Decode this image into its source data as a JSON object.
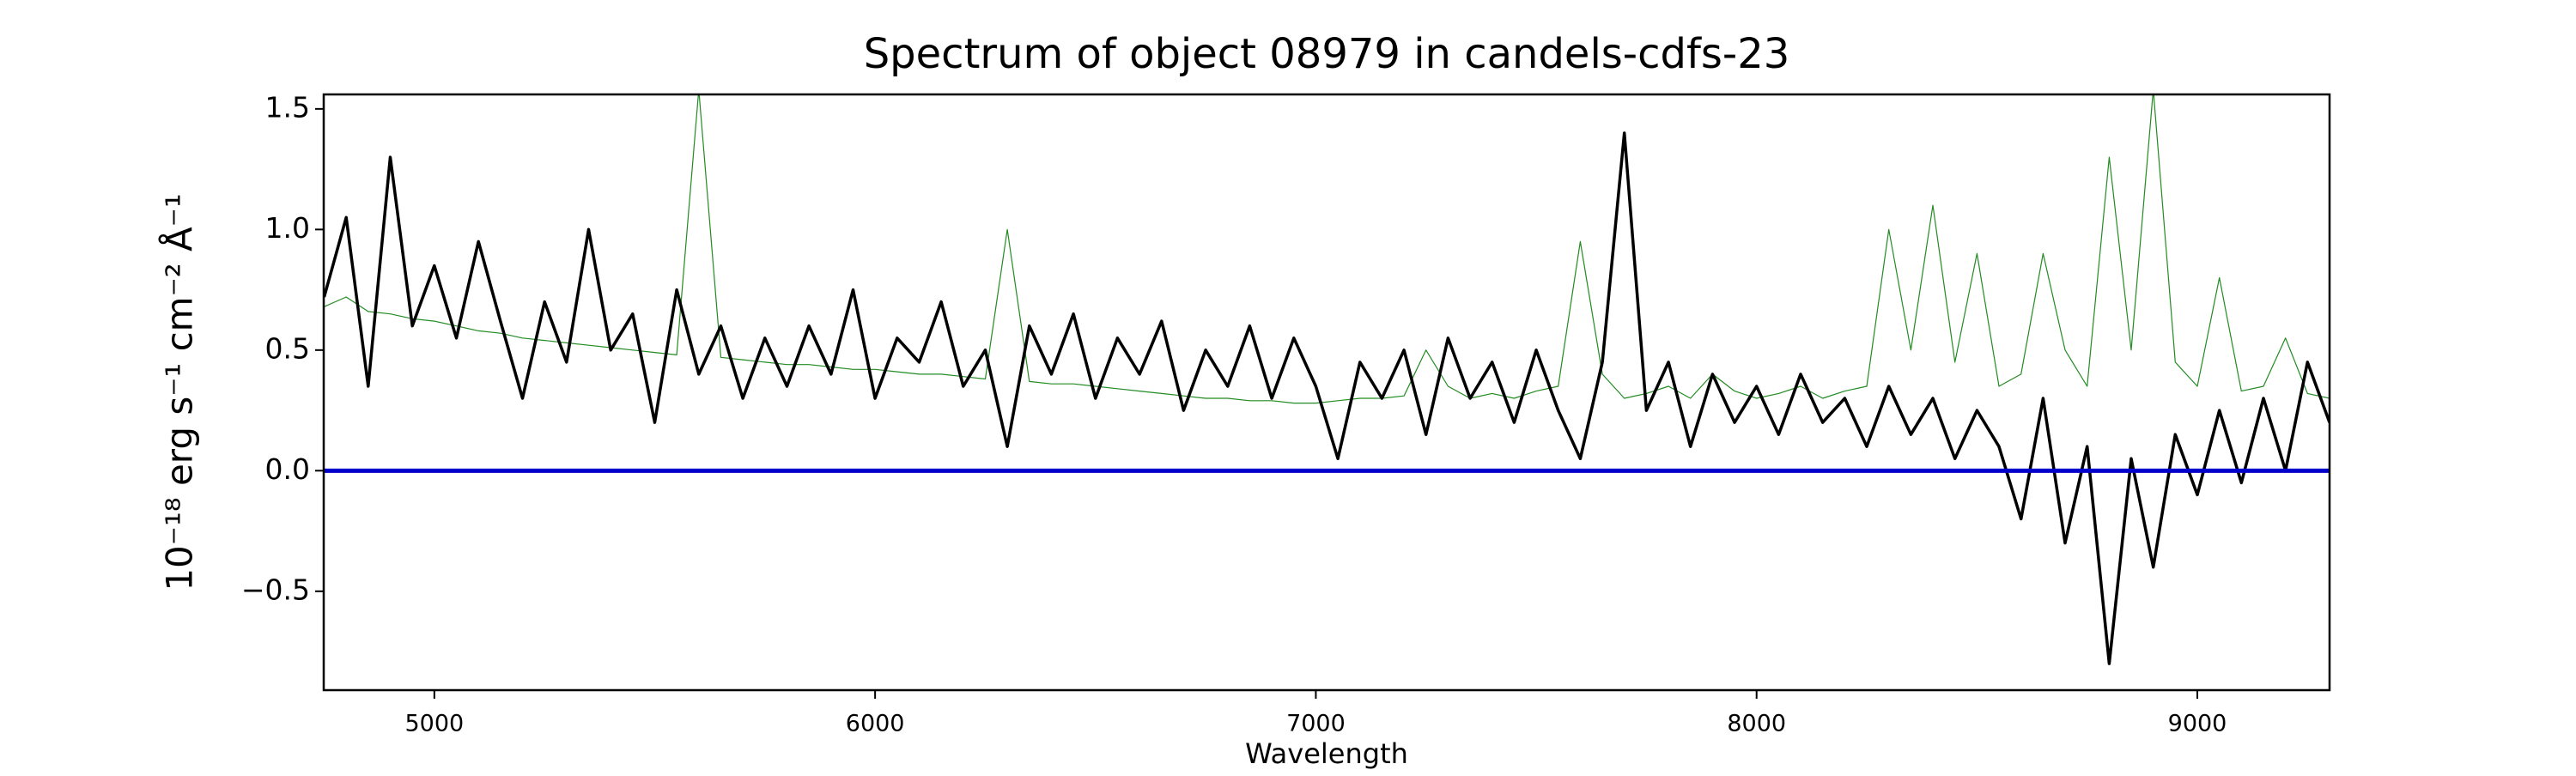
{
  "chart_data": {
    "type": "line",
    "title": "Spectrum of object 08979 in candels-cdfs-23",
    "xlabel": "Wavelength",
    "ylabel": "10⁻¹⁸ erg s⁻¹ cm⁻² Å⁻¹",
    "x": [
      4750,
      4800,
      4850,
      4900,
      4950,
      5000,
      5050,
      5100,
      5150,
      5200,
      5250,
      5300,
      5350,
      5400,
      5450,
      5500,
      5550,
      5600,
      5650,
      5700,
      5750,
      5800,
      5850,
      5900,
      5950,
      6000,
      6050,
      6100,
      6150,
      6200,
      6250,
      6300,
      6350,
      6400,
      6450,
      6500,
      6550,
      6600,
      6650,
      6700,
      6750,
      6800,
      6850,
      6900,
      6950,
      7000,
      7050,
      7100,
      7150,
      7200,
      7250,
      7300,
      7350,
      7400,
      7450,
      7500,
      7550,
      7600,
      7650,
      7700,
      7750,
      7800,
      7850,
      7900,
      7950,
      8000,
      8050,
      8100,
      8150,
      8200,
      8250,
      8300,
      8350,
      8400,
      8450,
      8500,
      8550,
      8600,
      8650,
      8700,
      8750,
      8800,
      8850,
      8900,
      8950,
      9000,
      9050,
      9100,
      9150,
      9200,
      9250,
      9300
    ],
    "series": [
      {
        "color": "#228b22",
        "width": 1.2,
        "values": [
          0.68,
          0.72,
          0.66,
          0.65,
          0.63,
          0.62,
          0.6,
          0.58,
          0.57,
          0.55,
          0.54,
          0.53,
          0.52,
          0.51,
          0.5,
          0.49,
          0.48,
          1.58,
          0.47,
          0.46,
          0.45,
          0.44,
          0.44,
          0.43,
          0.42,
          0.42,
          0.41,
          0.4,
          0.4,
          0.39,
          0.38,
          1.0,
          0.37,
          0.36,
          0.36,
          0.35,
          0.34,
          0.33,
          0.32,
          0.31,
          0.3,
          0.3,
          0.29,
          0.29,
          0.28,
          0.28,
          0.29,
          0.3,
          0.3,
          0.31,
          0.5,
          0.35,
          0.3,
          0.32,
          0.3,
          0.33,
          0.35,
          0.95,
          0.4,
          0.3,
          0.32,
          0.35,
          0.3,
          0.4,
          0.33,
          0.3,
          0.32,
          0.35,
          0.3,
          0.33,
          0.35,
          1.0,
          0.5,
          1.1,
          0.45,
          0.9,
          0.35,
          0.4,
          0.9,
          0.5,
          0.35,
          1.3,
          0.5,
          1.58,
          0.45,
          0.35,
          0.8,
          0.33,
          0.35,
          0.55,
          0.32,
          0.3
        ]
      },
      {
        "color": "#000000",
        "width": 3.5,
        "values": [
          0.72,
          1.05,
          0.35,
          1.3,
          0.6,
          0.85,
          0.55,
          0.95,
          0.62,
          0.3,
          0.7,
          0.45,
          1.0,
          0.5,
          0.65,
          0.2,
          0.75,
          0.4,
          0.6,
          0.3,
          0.55,
          0.35,
          0.6,
          0.4,
          0.75,
          0.3,
          0.55,
          0.45,
          0.7,
          0.35,
          0.5,
          0.1,
          0.6,
          0.4,
          0.65,
          0.3,
          0.55,
          0.4,
          0.62,
          0.25,
          0.5,
          0.35,
          0.6,
          0.3,
          0.55,
          0.35,
          0.05,
          0.45,
          0.3,
          0.5,
          0.15,
          0.55,
          0.3,
          0.45,
          0.2,
          0.5,
          0.25,
          0.05,
          0.45,
          1.4,
          0.25,
          0.45,
          0.1,
          0.4,
          0.2,
          0.35,
          0.15,
          0.4,
          0.2,
          0.3,
          0.1,
          0.35,
          0.15,
          0.3,
          0.05,
          0.25,
          0.1,
          -0.2,
          0.3,
          -0.3,
          0.1,
          -0.8,
          0.05,
          -0.4,
          0.15,
          -0.1,
          0.25,
          -0.05,
          0.3,
          0.0,
          0.45,
          0.2
        ]
      }
    ],
    "reference_line": {
      "value": 0,
      "color": "#0000cc"
    },
    "xlim": [
      4749,
      9300
    ],
    "ylim": [
      -0.91,
      1.56
    ],
    "xticks": [
      5000,
      6000,
      7000,
      8000,
      9000
    ],
    "yticks": [
      {
        "value": -0.5,
        "label": "−0.5"
      },
      {
        "value": 0,
        "label": "0.0"
      },
      0.5,
      {
        "value": 1,
        "label": "1.0"
      },
      1.5
    ],
    "grid": false
  }
}
